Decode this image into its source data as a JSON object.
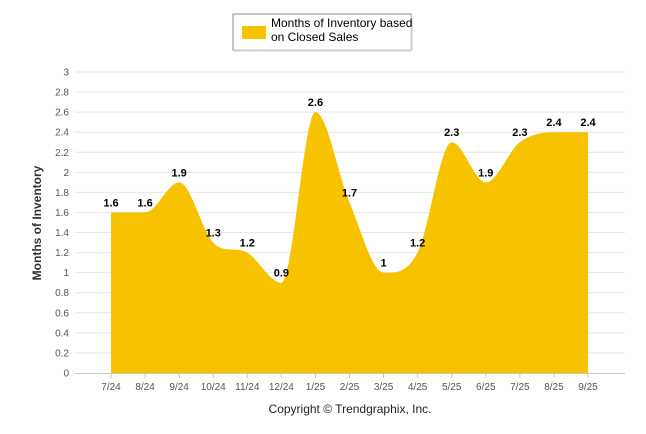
{
  "chart_data": {
    "type": "area",
    "categories": [
      "7/24",
      "8/24",
      "9/24",
      "10/24",
      "11/24",
      "12/24",
      "1/25",
      "2/25",
      "3/25",
      "4/25",
      "5/25",
      "6/25",
      "7/25",
      "8/25",
      "9/25"
    ],
    "series": [
      {
        "name": "Months of Inventory based on Closed Sales",
        "values": [
          1.6,
          1.6,
          1.9,
          1.3,
          1.2,
          0.9,
          2.6,
          1.7,
          1,
          1.2,
          2.3,
          1.9,
          2.3,
          2.4,
          2.4
        ],
        "labels": [
          "1.6",
          "1.6",
          "1.9",
          "1.3",
          "1.2",
          "0.9",
          "2.6",
          "1.7",
          "1",
          "1.2",
          "2.3",
          "1.9",
          "2.3",
          "2.4",
          "2.4"
        ],
        "color": "#F7C200"
      }
    ],
    "ylabel": "Months of Inventory",
    "xlabel": "",
    "ylim": [
      0,
      3
    ],
    "yticks": [
      "0",
      "0.2",
      "0.4",
      "0.6",
      "0.8",
      "1",
      "1.2",
      "1.4",
      "1.6",
      "1.8",
      "2",
      "2.2",
      "2.4",
      "2.6",
      "2.8",
      "3"
    ],
    "grid": true,
    "legend_position": "top-center",
    "legend_lines": [
      "Months of Inventory based",
      "on Closed Sales"
    ]
  },
  "footer": {
    "copyright": "Copyright © Trendgraphix, Inc."
  },
  "colors": {
    "area": "#F7C200",
    "grid": "#E6E6E6",
    "axis": "#C8C8C8"
  }
}
